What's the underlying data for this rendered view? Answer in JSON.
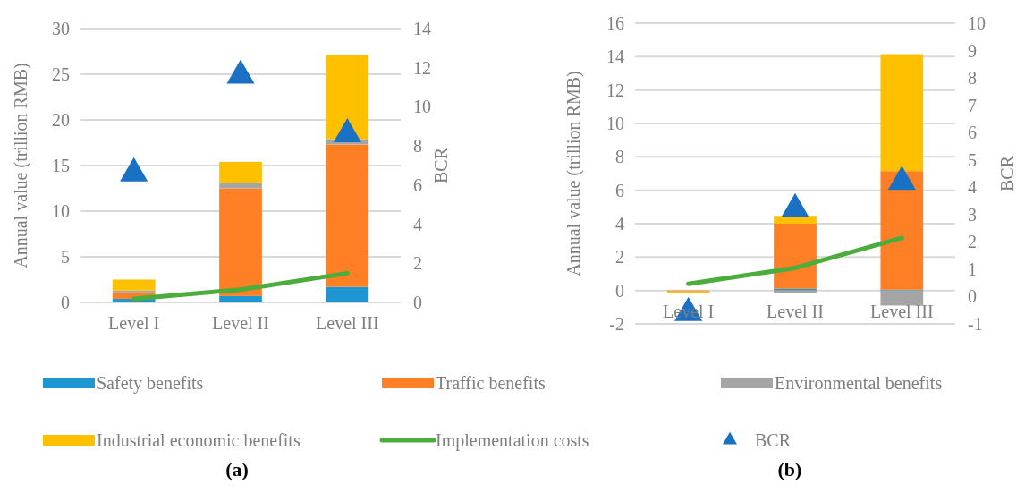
{
  "chart_data": [
    {
      "type": "bar",
      "stacked": true,
      "categories": [
        "Level I",
        "Level II",
        "Level III"
      ],
      "ylabel": "Annual value (trillion RMB)",
      "y2label": "BCR",
      "ylim": [
        0,
        30
      ],
      "yticks": [
        0,
        5,
        10,
        15,
        20,
        25,
        30
      ],
      "y2lim": [
        0,
        14
      ],
      "y2ticks": [
        0,
        2,
        4,
        6,
        8,
        10,
        12,
        14
      ],
      "grid": "y",
      "legend": "bottom",
      "annotations": [
        "(a)"
      ],
      "series": [
        {
          "name": "Safety benefits",
          "color": "#1e96d4",
          "values": [
            0.4,
            0.7,
            1.7
          ]
        },
        {
          "name": "Traffic benefits",
          "color": "#fe7f24",
          "values": [
            0.7,
            11.8,
            15.6
          ]
        },
        {
          "name": "Environmental benefits",
          "color": "#a5a5a5",
          "values": [
            0.2,
            0.6,
            0.6
          ]
        },
        {
          "name": "Industrial economic benefits",
          "color": "#ffc000",
          "values": [
            1.2,
            2.3,
            9.2
          ]
        },
        {
          "name": "Implementation costs",
          "type": "line",
          "color": "#4aad3c",
          "values": [
            0.4,
            1.4,
            3.2
          ]
        },
        {
          "name": "BCR",
          "type": "scatter",
          "axis": "y2",
          "marker": "triangle",
          "color": "#1a71c4",
          "values": [
            6.6,
            11.6,
            8.6
          ]
        }
      ]
    },
    {
      "type": "bar",
      "stacked": true,
      "categories": [
        "Level I",
        "Level II",
        "Level III"
      ],
      "ylabel": "Annual value (trillion RMB)",
      "y2label": "BCR",
      "ylim": [
        -2,
        16
      ],
      "yticks": [
        -2,
        0,
        2,
        4,
        6,
        8,
        10,
        12,
        14,
        16
      ],
      "y2lim": [
        -1,
        10
      ],
      "y2ticks": [
        -1,
        0,
        1,
        2,
        3,
        4,
        5,
        6,
        7,
        8,
        9,
        10
      ],
      "grid": "y",
      "annotations": [
        "(b)"
      ],
      "series": [
        {
          "color": "#1e96d4",
          "values": [
            null,
            0.1,
            0.05
          ]
        },
        {
          "color": "#fe7f24",
          "values": [
            -0.05,
            3.9,
            7.1
          ]
        },
        {
          "color": "#a5a5a5",
          "values": [
            null,
            -0.15,
            -0.9
          ]
        },
        {
          "color": "#ffc000",
          "values": [
            -0.1,
            0.47,
            7.0
          ]
        },
        {
          "type": "line",
          "color": "#4aad3c",
          "values": [
            0.4,
            1.35,
            3.15
          ]
        },
        {
          "type": "scatter",
          "axis": "y2",
          "marker": "triangle",
          "color": "#1a71c4",
          "values": [
            -0.6,
            3.2,
            4.2
          ]
        }
      ]
    }
  ]
}
